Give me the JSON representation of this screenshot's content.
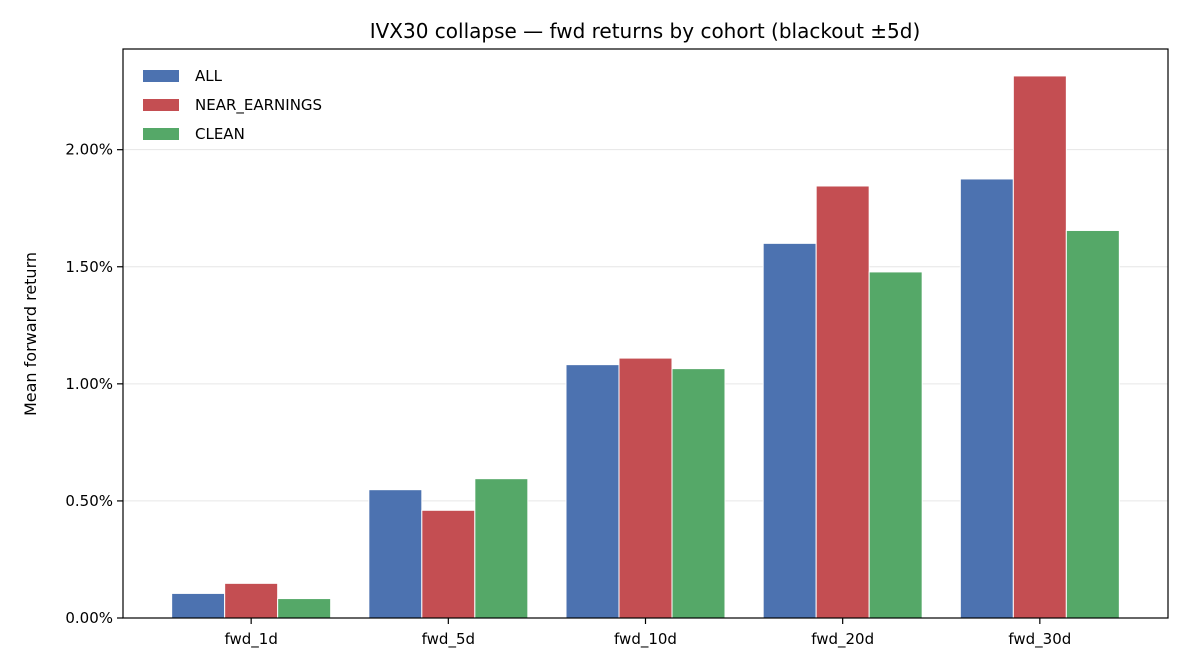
{
  "chart_data": {
    "type": "bar",
    "title": "IVX30 collapse — fwd returns by cohort (blackout ±5d)",
    "xlabel": "",
    "ylabel": "Mean forward return",
    "categories": [
      "fwd_1d",
      "fwd_5d",
      "fwd_10d",
      "fwd_20d",
      "fwd_30d"
    ],
    "series": [
      {
        "name": "ALL",
        "color": "#4c72b0",
        "values": [
          0.00105,
          0.00548,
          0.01082,
          0.016,
          0.01875
        ]
      },
      {
        "name": "NEAR_EARNINGS",
        "color": "#c44e52",
        "values": [
          0.00148,
          0.0046,
          0.0111,
          0.01845,
          0.02315
        ]
      },
      {
        "name": "CLEAN",
        "color": "#55a868",
        "values": [
          0.00083,
          0.00595,
          0.01065,
          0.01478,
          0.01655
        ]
      }
    ],
    "ylim": [
      0,
      0.0243
    ],
    "yticks": [
      0,
      0.005,
      0.01,
      0.015,
      0.02
    ],
    "ytick_labels": [
      "0.00%",
      "0.50%",
      "1.00%",
      "1.50%",
      "2.00%"
    ],
    "grid": "y",
    "legend_position": "top-left"
  }
}
